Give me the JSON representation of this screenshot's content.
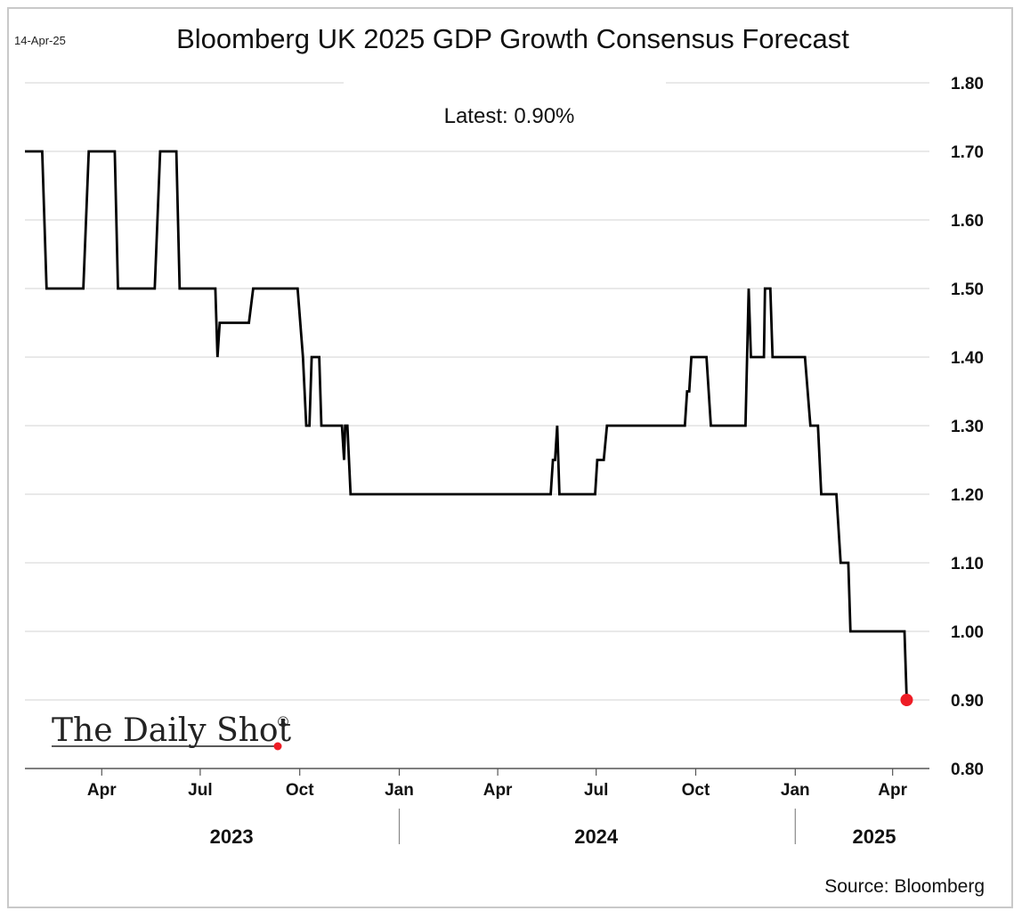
{
  "header": {
    "date_stamp": "14-Apr-25",
    "title": "Bloomberg UK 2025 GDP Growth Consensus Forecast"
  },
  "annotation": {
    "latest_text": "Latest:  0.90%"
  },
  "footer": {
    "source": "Source: Bloomberg"
  },
  "logo": {
    "text": "The Daily Shot",
    "registered_mark": "®"
  },
  "colors": {
    "line": "#000000",
    "last_point": "#ee1c25",
    "grid": "#dcdcdc",
    "axis": "#555555"
  },
  "chart_data": {
    "type": "line",
    "title": "Bloomberg UK 2025 GDP Growth Consensus Forecast",
    "xlabel": "",
    "ylabel": "",
    "x_range": [
      "2023-01-20",
      "2025-05-05"
    ],
    "ylim": [
      0.8,
      1.8
    ],
    "y_ticks": [
      0.8,
      0.9,
      1.0,
      1.1,
      1.2,
      1.3,
      1.4,
      1.5,
      1.6,
      1.7,
      1.8
    ],
    "y_tick_labels": [
      "0.80",
      "0.90",
      "1.00",
      "1.10",
      "1.20",
      "1.30",
      "1.40",
      "1.50",
      "1.60",
      "1.70",
      "1.80"
    ],
    "y_axis_side": "right",
    "x_ticks": [
      {
        "date": "2023-04-01",
        "label": "Apr"
      },
      {
        "date": "2023-07-01",
        "label": "Jul"
      },
      {
        "date": "2023-10-01",
        "label": "Oct"
      },
      {
        "date": "2024-01-01",
        "label": "Jan"
      },
      {
        "date": "2024-04-01",
        "label": "Apr"
      },
      {
        "date": "2024-07-01",
        "label": "Jul"
      },
      {
        "date": "2024-10-01",
        "label": "Oct"
      },
      {
        "date": "2025-01-01",
        "label": "Jan"
      },
      {
        "date": "2025-04-01",
        "label": "Apr"
      }
    ],
    "year_labels": [
      {
        "label": "2023",
        "center": "2023-07-30"
      },
      {
        "label": "2024",
        "center": "2024-07-01"
      },
      {
        "label": "2025",
        "center": "2025-03-15"
      }
    ],
    "year_separators": [
      "2024-01-01",
      "2025-01-01"
    ],
    "grid": true,
    "last_point": {
      "date": "2025-04-14",
      "value": 0.9
    },
    "series": [
      {
        "points": [
          [
            "2023-01-20",
            1.7
          ],
          [
            "2023-02-05",
            1.7
          ],
          [
            "2023-02-09",
            1.5
          ],
          [
            "2023-03-15",
            1.5
          ],
          [
            "2023-03-20",
            1.7
          ],
          [
            "2023-04-13",
            1.7
          ],
          [
            "2023-04-16",
            1.5
          ],
          [
            "2023-05-20",
            1.5
          ],
          [
            "2023-05-25",
            1.7
          ],
          [
            "2023-06-09",
            1.7
          ],
          [
            "2023-06-12",
            1.5
          ],
          [
            "2023-07-15",
            1.5
          ],
          [
            "2023-07-17",
            1.4
          ],
          [
            "2023-07-19",
            1.45
          ],
          [
            "2023-08-15",
            1.45
          ],
          [
            "2023-08-19",
            1.5
          ],
          [
            "2023-09-29",
            1.5
          ],
          [
            "2023-10-04",
            1.4
          ],
          [
            "2023-10-07",
            1.3
          ],
          [
            "2023-10-10",
            1.3
          ],
          [
            "2023-10-12",
            1.4
          ],
          [
            "2023-10-19",
            1.4
          ],
          [
            "2023-10-21",
            1.3
          ],
          [
            "2023-11-09",
            1.3
          ],
          [
            "2023-11-11",
            1.25
          ],
          [
            "2023-11-12",
            1.3
          ],
          [
            "2023-11-14",
            1.3
          ],
          [
            "2023-11-17",
            1.2
          ],
          [
            "2024-05-20",
            1.2
          ],
          [
            "2024-05-22",
            1.25
          ],
          [
            "2024-05-24",
            1.25
          ],
          [
            "2024-05-26",
            1.3
          ],
          [
            "2024-05-28",
            1.2
          ],
          [
            "2024-06-30",
            1.2
          ],
          [
            "2024-07-02",
            1.25
          ],
          [
            "2024-07-08",
            1.25
          ],
          [
            "2024-07-11",
            1.3
          ],
          [
            "2024-09-21",
            1.3
          ],
          [
            "2024-09-23",
            1.35
          ],
          [
            "2024-09-25",
            1.35
          ],
          [
            "2024-09-27",
            1.4
          ],
          [
            "2024-10-11",
            1.4
          ],
          [
            "2024-10-15",
            1.3
          ],
          [
            "2024-11-16",
            1.3
          ],
          [
            "2024-11-19",
            1.5
          ],
          [
            "2024-11-21",
            1.4
          ],
          [
            "2024-12-03",
            1.4
          ],
          [
            "2024-12-04",
            1.5
          ],
          [
            "2024-12-09",
            1.5
          ],
          [
            "2024-12-11",
            1.4
          ],
          [
            "2025-01-10",
            1.4
          ],
          [
            "2025-01-15",
            1.3
          ],
          [
            "2025-01-22",
            1.3
          ],
          [
            "2025-01-25",
            1.2
          ],
          [
            "2025-02-08",
            1.2
          ],
          [
            "2025-02-12",
            1.1
          ],
          [
            "2025-02-19",
            1.1
          ],
          [
            "2025-02-21",
            1.0
          ],
          [
            "2025-04-12",
            1.0
          ],
          [
            "2025-04-14",
            0.9
          ]
        ]
      }
    ]
  }
}
